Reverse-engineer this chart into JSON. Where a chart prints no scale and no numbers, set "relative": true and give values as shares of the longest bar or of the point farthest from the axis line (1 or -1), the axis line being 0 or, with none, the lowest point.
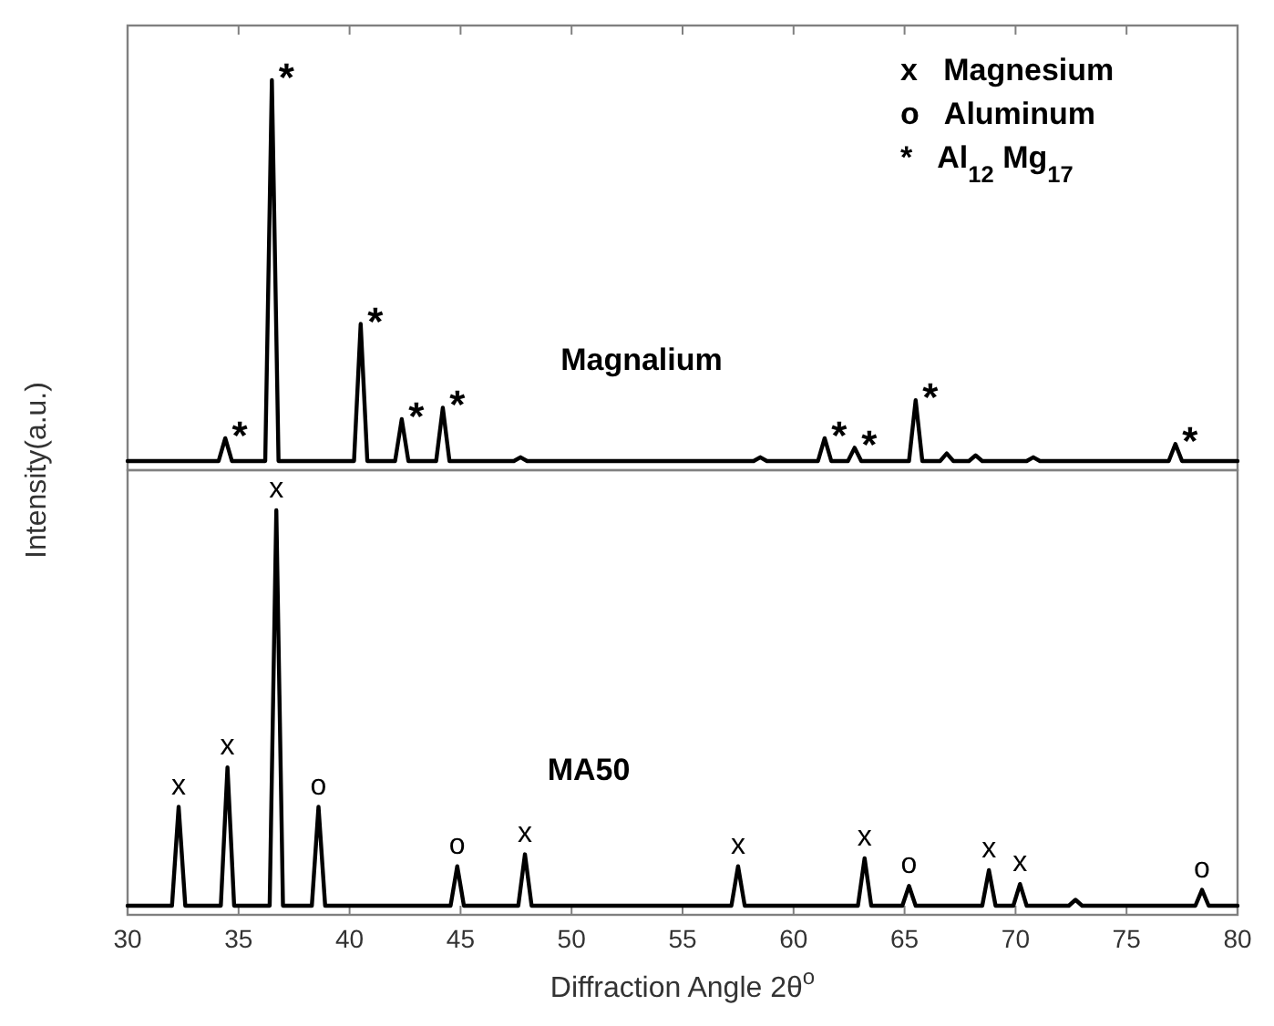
{
  "chart_data": [
    {
      "type": "line",
      "relative": true,
      "tick_labels": false,
      "xlim": [
        30,
        80
      ],
      "xticks": [
        30,
        35,
        40,
        45,
        50,
        55,
        60,
        65,
        70,
        75,
        80
      ],
      "series": [
        {
          "color": "#000000",
          "x": [
            30,
            34.1,
            34.4,
            34.7,
            36.2,
            36.5,
            36.8,
            40.2,
            40.5,
            40.8,
            42.05,
            42.35,
            42.65,
            43.9,
            44.2,
            44.5,
            47.4,
            47.7,
            48.0,
            58.2,
            58.5,
            58.8,
            61.1,
            61.4,
            61.7,
            62.45,
            62.75,
            63.05,
            65.2,
            65.5,
            65.8,
            66.6,
            66.9,
            67.2,
            67.9,
            68.2,
            68.5,
            70.5,
            70.8,
            71.1,
            76.9,
            77.2,
            77.5,
            80
          ],
          "values": [
            0,
            0,
            0.06,
            0,
            0,
            1,
            0,
            0,
            0.36,
            0,
            0,
            0.11,
            0,
            0,
            0.14,
            0,
            0,
            0.01,
            0,
            0,
            0.01,
            0,
            0,
            0.06,
            0,
            0,
            0.035,
            0,
            0,
            0.16,
            0,
            0,
            0.02,
            0,
            0,
            0.015,
            0,
            0,
            0.01,
            0,
            0,
            0.045,
            0,
            0
          ]
        }
      ],
      "annotations": [
        "Magnalium",
        "x   Magnesium",
        "o   Aluminum",
        "*   Al$_{12}$ Mg$_{17}$",
        {
          "text": "*",
          "x": 34.4,
          "y": 0.06
        },
        {
          "text": "*",
          "x": 36.5,
          "y": 1
        },
        {
          "text": "*",
          "x": 40.5,
          "y": 0.36
        },
        {
          "text": "*",
          "x": 42.35,
          "y": 0.11
        },
        {
          "text": "*",
          "x": 44.2,
          "y": 0.14
        },
        {
          "text": "*",
          "x": 61.4,
          "y": 0.06
        },
        {
          "text": "*",
          "x": 62.75,
          "y": 0.035
        },
        {
          "text": "*",
          "x": 65.5,
          "y": 0.16
        },
        {
          "text": "*",
          "x": 77.2,
          "y": 0.045
        }
      ]
    },
    {
      "type": "line",
      "relative": true,
      "tick_labels": "x",
      "xlim": [
        30,
        80
      ],
      "xticks": [
        30,
        35,
        40,
        45,
        50,
        55,
        60,
        65,
        70,
        75,
        80
      ],
      "xlabel": "Diffraction Angle 2θ$^{o}$",
      "ylabel": "Intensity(a.u.)",
      "series": [
        {
          "color": "#000000",
          "x": [
            30,
            32.0,
            32.3,
            32.6,
            34.2,
            34.5,
            34.8,
            36.4,
            36.7,
            37.0,
            38.3,
            38.6,
            38.9,
            44.55,
            44.85,
            45.15,
            47.6,
            47.9,
            48.2,
            57.2,
            57.5,
            57.8,
            62.9,
            63.2,
            63.5,
            64.9,
            65.2,
            65.5,
            68.5,
            68.8,
            69.1,
            69.9,
            70.2,
            70.5,
            72.4,
            72.7,
            73.0,
            78.1,
            78.4,
            78.7,
            80
          ],
          "values": [
            0,
            0,
            0.25,
            0,
            0,
            0.35,
            0,
            0,
            1,
            0,
            0,
            0.25,
            0,
            0,
            0.1,
            0,
            0,
            0.13,
            0,
            0,
            0.1,
            0,
            0,
            0.12,
            0,
            0,
            0.05,
            0,
            0,
            0.09,
            0,
            0,
            0.055,
            0,
            0,
            0.015,
            0,
            0,
            0.04,
            0,
            0
          ]
        }
      ],
      "annotations": [
        "MA50",
        {
          "text": "x",
          "x": 32.3,
          "y": 0.25
        },
        {
          "text": "x",
          "x": 34.5,
          "y": 0.35
        },
        {
          "text": "x",
          "x": 36.7,
          "y": 1
        },
        {
          "text": "o",
          "x": 38.6,
          "y": 0.25
        },
        {
          "text": "o",
          "x": 44.85,
          "y": 0.1
        },
        {
          "text": "x",
          "x": 47.9,
          "y": 0.13
        },
        {
          "text": "x",
          "x": 57.5,
          "y": 0.1
        },
        {
          "text": "x",
          "x": 63.2,
          "y": 0.12
        },
        {
          "text": "o",
          "x": 65.2,
          "y": 0.05
        },
        {
          "text": "x",
          "x": 68.8,
          "y": 0.09
        },
        {
          "text": "x",
          "x": 70.2,
          "y": 0.055
        },
        {
          "text": "o",
          "x": 78.4,
          "y": 0.04
        }
      ]
    }
  ]
}
